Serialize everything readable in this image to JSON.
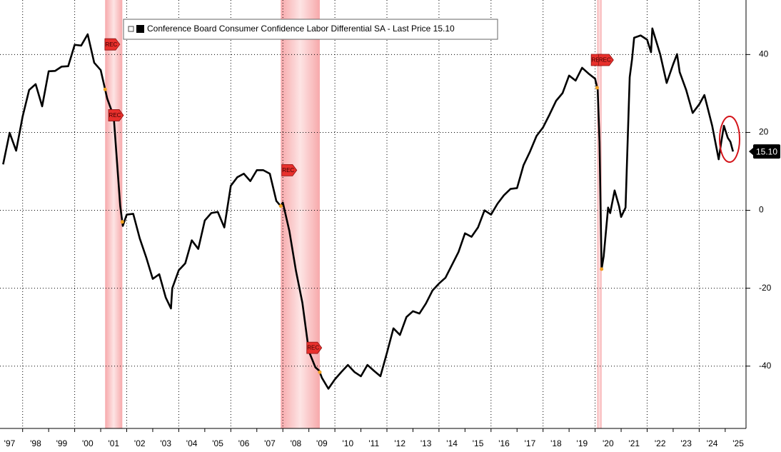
{
  "chart_data": {
    "type": "line",
    "x": [
      1997.25,
      1997.5,
      1997.75,
      1998,
      1998.25,
      1998.5,
      1998.75,
      1999,
      1999.25,
      1999.5,
      1999.75,
      2000,
      2000.25,
      2000.5,
      2000.75,
      2001,
      2001.25,
      2001.5,
      2001.75,
      2001.85,
      2002,
      2002.25,
      2002.5,
      2002.75,
      2003,
      2003.25,
      2003.5,
      2003.7,
      2003.75,
      2004,
      2004.25,
      2004.5,
      2004.75,
      2005,
      2005.25,
      2005.5,
      2005.75,
      2006,
      2006.25,
      2006.5,
      2006.75,
      2007,
      2007.25,
      2007.5,
      2007.75,
      2007.92,
      2008,
      2008.25,
      2008.5,
      2008.75,
      2009,
      2009.25,
      2009.4,
      2009.5,
      2009.75,
      2010,
      2010.25,
      2010.5,
      2010.75,
      2011,
      2011.25,
      2011.5,
      2011.75,
      2012,
      2012.25,
      2012.5,
      2012.75,
      2013,
      2013.25,
      2013.5,
      2013.75,
      2014,
      2014.25,
      2014.5,
      2014.75,
      2015,
      2015.25,
      2015.5,
      2015.75,
      2016,
      2016.25,
      2016.5,
      2016.75,
      2017,
      2017.25,
      2017.5,
      2017.75,
      2018,
      2018.25,
      2018.5,
      2018.75,
      2019,
      2019.25,
      2019.5,
      2019.75,
      2020,
      2020.1,
      2020.17,
      2020.25,
      2020.33,
      2020.5,
      2020.58,
      2020.75,
      2020.92,
      2021,
      2021.17,
      2021.33,
      2021.42,
      2021.5,
      2021.75,
      2022,
      2022.15,
      2022.2,
      2022.5,
      2022.75,
      2023,
      2023.15,
      2023.25,
      2023.5,
      2023.75,
      2024,
      2024.2,
      2024.5,
      2024.75,
      2024.85,
      2024.95,
      2025.1,
      2025.2,
      2025.3
    ],
    "series": [
      {
        "name": "Conference Board Consumer Confidence Labor Differential SA - Last Price 15.10",
        "color": "#000000",
        "values": [
          11.8,
          19.9,
          15.3,
          24.1,
          30.9,
          32.4,
          26.7,
          35.7,
          35.8,
          36.9,
          37.0,
          42.5,
          42.3,
          45.2,
          37.9,
          36.0,
          28.7,
          24.1,
          1.1,
          -4.0,
          -1.1,
          -0.9,
          -7.2,
          -12.1,
          -17.6,
          -16.4,
          -22.4,
          -25.2,
          -20.0,
          -15.4,
          -13.6,
          -7.7,
          -9.9,
          -2.6,
          -0.7,
          -0.4,
          -4.4,
          6.3,
          8.5,
          9.4,
          7.5,
          10.3,
          10.3,
          9.4,
          2.4,
          1.1,
          2.0,
          -5.3,
          -15.4,
          -23.7,
          -36.2,
          -40.3,
          -41.2,
          -43.0,
          -45.8,
          -43.4,
          -41.5,
          -39.7,
          -41.5,
          -42.6,
          -39.7,
          -41.2,
          -42.6,
          -36.6,
          -30.3,
          -32.0,
          -27.4,
          -25.9,
          -26.5,
          -23.9,
          -20.6,
          -18.8,
          -17.3,
          -14.0,
          -10.7,
          -5.9,
          -6.8,
          -4.4,
          0.0,
          -1.1,
          1.7,
          3.9,
          5.5,
          5.7,
          11.6,
          15.1,
          19.1,
          21.3,
          24.6,
          28.1,
          30.1,
          34.6,
          33.3,
          36.6,
          35.1,
          33.8,
          30.9,
          17.6,
          -15.1,
          -11.8,
          0.7,
          -0.7,
          5.1,
          1.1,
          -1.7,
          0.7,
          34.2,
          38.8,
          44.3,
          44.9,
          43.8,
          40.6,
          46.7,
          40.1,
          32.7,
          37.5,
          40.1,
          35.5,
          30.9,
          25.0,
          27.2,
          29.6,
          21.7,
          13.1,
          17.6,
          21.7,
          18.6,
          17.6,
          15.1
        ]
      }
    ],
    "last_value_label": "15.10",
    "xlim": [
      1997.13,
      2025.8
    ],
    "ylim": [
      -56,
      54
    ],
    "yticks": [
      -40,
      -20,
      0,
      20,
      40
    ],
    "xticks": [
      {
        "value": 1997,
        "label": "'97"
      },
      {
        "value": 1998,
        "label": "'98"
      },
      {
        "value": 1999,
        "label": "'99"
      },
      {
        "value": 2000,
        "label": "'00"
      },
      {
        "value": 2001,
        "label": "'01"
      },
      {
        "value": 2002,
        "label": "'02"
      },
      {
        "value": 2003,
        "label": "'03"
      },
      {
        "value": 2004,
        "label": "'04"
      },
      {
        "value": 2005,
        "label": "'05"
      },
      {
        "value": 2006,
        "label": "'06"
      },
      {
        "value": 2007,
        "label": "'07"
      },
      {
        "value": 2008,
        "label": "'08"
      },
      {
        "value": 2009,
        "label": "'09"
      },
      {
        "value": 2010,
        "label": "'10"
      },
      {
        "value": 2011,
        "label": "'11"
      },
      {
        "value": 2012,
        "label": "'12"
      },
      {
        "value": 2013,
        "label": "'13"
      },
      {
        "value": 2014,
        "label": "'14"
      },
      {
        "value": 2015,
        "label": "'15"
      },
      {
        "value": 2016,
        "label": "'16"
      },
      {
        "value": 2017,
        "label": "'17"
      },
      {
        "value": 2018,
        "label": "'18"
      },
      {
        "value": 2019,
        "label": "'19"
      },
      {
        "value": 2020,
        "label": "'20"
      },
      {
        "value": 2021,
        "label": "'21"
      },
      {
        "value": 2022,
        "label": "'22"
      },
      {
        "value": 2023,
        "label": "'23"
      },
      {
        "value": 2024,
        "label": "'24"
      },
      {
        "value": 2025,
        "label": "'25"
      }
    ],
    "grid": true,
    "shaded_periods": [
      [
        2001.17,
        2001.83
      ],
      [
        2007.92,
        2009.42
      ],
      [
        2020.08,
        2020.25
      ]
    ],
    "shade_color": "#f7a9ab",
    "annotations": [
      {
        "label": "REC",
        "x": 2001.16,
        "y": 42.6
      },
      {
        "label": "REC",
        "x": 2001.3,
        "y": 24.4
      },
      {
        "label": "REC",
        "x": 2007.96,
        "y": 10.3
      },
      {
        "label": "REC",
        "x": 2008.92,
        "y": -35.3
      },
      {
        "label": "REC",
        "x": 2019.85,
        "y": 38.6
      },
      {
        "label": "REC",
        "x": 2020.13,
        "y": 38.6
      }
    ]
  }
}
